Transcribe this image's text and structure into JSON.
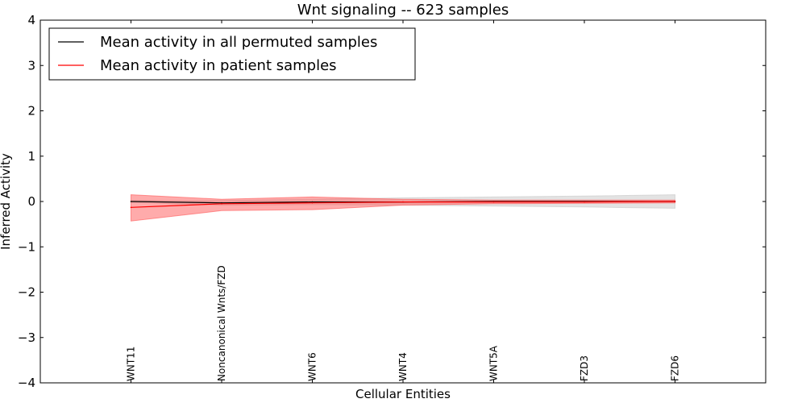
{
  "chart_data": {
    "type": "line",
    "title": "Wnt signaling -- 623 samples",
    "xlabel": "Cellular Entities",
    "ylabel": "Inferred Activity",
    "ylim": [
      -4,
      4
    ],
    "yticks": [
      "−4",
      "−3",
      "−2",
      "−1",
      "0",
      "1",
      "2",
      "3",
      "4"
    ],
    "ytick_values": [
      -4,
      -3,
      -2,
      -1,
      0,
      1,
      2,
      3,
      4
    ],
    "categories": [
      "WNT11",
      "Noncanonical Wnts/FZD",
      "WNT6",
      "WNT4",
      "WNT5A",
      "FZD3",
      "FZD6"
    ],
    "xlim": [
      0,
      8
    ],
    "series": [
      {
        "name": "Mean activity in all permuted samples",
        "color": "#000000",
        "band_color": "#cccccc",
        "values": [
          0.0,
          -0.03,
          -0.01,
          -0.01,
          0.0,
          0.0,
          0.0
        ],
        "lower": [
          -0.02,
          -0.08,
          -0.07,
          -0.08,
          -0.1,
          -0.12,
          -0.15
        ],
        "upper": [
          0.02,
          0.02,
          0.05,
          0.08,
          0.1,
          0.12,
          0.15
        ]
      },
      {
        "name": "Mean activity in patient samples",
        "color": "#ff0000",
        "band_color": "#ff6666",
        "values": [
          -0.13,
          -0.05,
          -0.03,
          -0.01,
          -0.01,
          -0.01,
          0.0
        ],
        "lower": [
          -0.43,
          -0.2,
          -0.18,
          -0.08,
          -0.05,
          -0.04,
          -0.03
        ],
        "upper": [
          0.15,
          0.05,
          0.1,
          0.05,
          0.03,
          0.03,
          0.03
        ]
      }
    ],
    "legend_position": "upper-left"
  }
}
